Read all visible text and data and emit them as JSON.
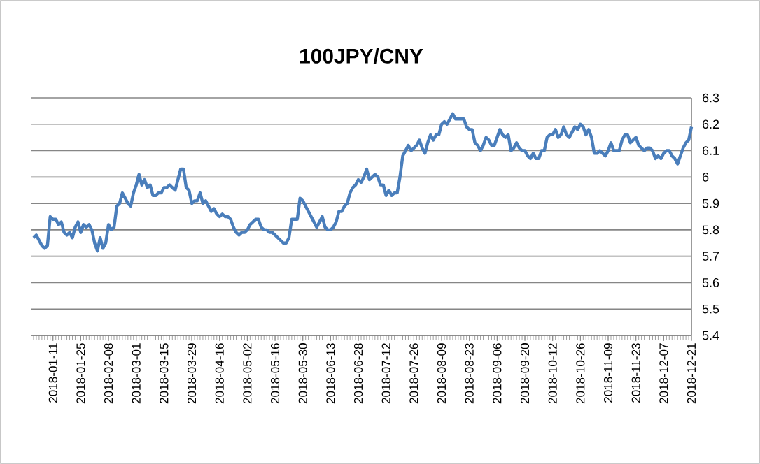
{
  "chart_data": {
    "type": "line",
    "title": "100JPY/CNY",
    "categories": [
      null,
      null,
      null,
      null,
      null,
      null,
      null,
      "2018-01-11",
      null,
      null,
      null,
      null,
      null,
      null,
      null,
      null,
      null,
      "2018-01-25",
      null,
      null,
      null,
      null,
      null,
      null,
      null,
      null,
      null,
      "2018-02-08",
      null,
      null,
      null,
      null,
      null,
      null,
      null,
      null,
      null,
      "2018-03-01",
      null,
      null,
      null,
      null,
      null,
      null,
      null,
      null,
      null,
      "2018-03-15",
      null,
      null,
      null,
      null,
      null,
      null,
      null,
      null,
      null,
      "2018-03-29",
      null,
      null,
      null,
      null,
      null,
      null,
      null,
      null,
      null,
      "2018-04-16",
      null,
      null,
      null,
      null,
      null,
      null,
      null,
      null,
      null,
      "2018-05-02",
      null,
      null,
      null,
      null,
      null,
      null,
      null,
      null,
      null,
      "2018-05-16",
      null,
      null,
      null,
      null,
      null,
      null,
      null,
      null,
      null,
      "2018-05-30",
      null,
      null,
      null,
      null,
      null,
      null,
      null,
      null,
      null,
      "2018-06-13",
      null,
      null,
      null,
      null,
      null,
      null,
      null,
      null,
      null,
      "2018-06-28",
      null,
      null,
      null,
      null,
      null,
      null,
      null,
      null,
      null,
      "2018-07-12",
      null,
      null,
      null,
      null,
      null,
      null,
      null,
      null,
      null,
      "2018-07-26",
      null,
      null,
      null,
      null,
      null,
      null,
      null,
      null,
      null,
      "2018-08-09",
      null,
      null,
      null,
      null,
      null,
      null,
      null,
      null,
      null,
      "2018-08-23",
      null,
      null,
      null,
      null,
      null,
      null,
      null,
      null,
      null,
      "2018-09-06",
      null,
      null,
      null,
      null,
      null,
      null,
      null,
      null,
      null,
      "2018-09-20",
      null,
      null,
      null,
      null,
      null,
      null,
      null,
      null,
      null,
      "2018-10-12",
      null,
      null,
      null,
      null,
      null,
      null,
      null,
      null,
      null,
      "2018-10-26",
      null,
      null,
      null,
      null,
      null,
      null,
      null,
      null,
      null,
      "2018-11-09",
      null,
      null,
      null,
      null,
      null,
      null,
      null,
      null,
      null,
      "2018-11-23",
      null,
      null,
      null,
      null,
      null,
      null,
      null,
      null,
      null,
      "2018-12-07",
      null,
      null,
      null,
      null,
      null,
      null,
      null,
      null,
      null,
      "2018-12-21"
    ],
    "series": [
      {
        "color": "#4a7ebb",
        "values": [
          5.77,
          5.78,
          5.76,
          5.74,
          5.73,
          5.74,
          5.85,
          5.84,
          5.84,
          5.82,
          5.83,
          5.79,
          5.78,
          5.79,
          5.77,
          5.81,
          5.83,
          5.79,
          5.82,
          5.81,
          5.82,
          5.8,
          5.75,
          5.72,
          5.77,
          5.73,
          5.75,
          5.82,
          5.8,
          5.81,
          5.89,
          5.9,
          5.94,
          5.92,
          5.9,
          5.89,
          5.94,
          5.97,
          6.01,
          5.97,
          5.99,
          5.96,
          5.97,
          5.93,
          5.93,
          5.94,
          5.94,
          5.96,
          5.96,
          5.97,
          5.96,
          5.95,
          5.99,
          6.03,
          6.03,
          5.96,
          5.95,
          5.9,
          5.91,
          5.91,
          5.94,
          5.9,
          5.91,
          5.89,
          5.87,
          5.88,
          5.86,
          5.85,
          5.86,
          5.85,
          5.85,
          5.84,
          5.81,
          5.79,
          5.78,
          5.79,
          5.79,
          5.8,
          5.82,
          5.83,
          5.84,
          5.84,
          5.81,
          5.8,
          5.8,
          5.79,
          5.79,
          5.78,
          5.77,
          5.76,
          5.75,
          5.75,
          5.77,
          5.84,
          5.84,
          5.84,
          5.92,
          5.91,
          5.89,
          5.87,
          5.85,
          5.83,
          5.81,
          5.83,
          5.85,
          5.81,
          5.8,
          5.8,
          5.81,
          5.83,
          5.87,
          5.87,
          5.89,
          5.9,
          5.94,
          5.96,
          5.97,
          5.99,
          5.98,
          6.0,
          6.03,
          5.99,
          6.0,
          6.01,
          6.0,
          5.97,
          5.97,
          5.93,
          5.95,
          5.93,
          5.94,
          5.94,
          6.0,
          6.08,
          6.1,
          6.12,
          6.1,
          6.11,
          6.12,
          6.14,
          6.11,
          6.09,
          6.13,
          6.16,
          6.14,
          6.16,
          6.16,
          6.2,
          6.21,
          6.2,
          6.22,
          6.24,
          6.22,
          6.22,
          6.22,
          6.22,
          6.19,
          6.18,
          6.18,
          6.13,
          6.12,
          6.1,
          6.12,
          6.15,
          6.14,
          6.12,
          6.12,
          6.15,
          6.18,
          6.16,
          6.15,
          6.16,
          6.1,
          6.11,
          6.13,
          6.11,
          6.1,
          6.1,
          6.08,
          6.07,
          6.09,
          6.07,
          6.07,
          6.1,
          6.1,
          6.15,
          6.16,
          6.16,
          6.18,
          6.15,
          6.16,
          6.19,
          6.16,
          6.15,
          6.17,
          6.19,
          6.18,
          6.2,
          6.19,
          6.16,
          6.18,
          6.15,
          6.09,
          6.09,
          6.1,
          6.09,
          6.08,
          6.1,
          6.13,
          6.1,
          6.1,
          6.1,
          6.14,
          6.16,
          6.16,
          6.13,
          6.14,
          6.15,
          6.12,
          6.11,
          6.1,
          6.11,
          6.11,
          6.1,
          6.07,
          6.08,
          6.07,
          6.09,
          6.1,
          6.1,
          6.08,
          6.07,
          6.05,
          6.08,
          6.11,
          6.13,
          6.14,
          6.19
        ]
      }
    ],
    "ylim": [
      5.4,
      6.3
    ],
    "yticks": [
      5.4,
      5.5,
      5.6,
      5.7,
      5.8,
      5.9,
      6,
      6.1,
      6.2,
      6.3
    ],
    "grid": "y"
  }
}
